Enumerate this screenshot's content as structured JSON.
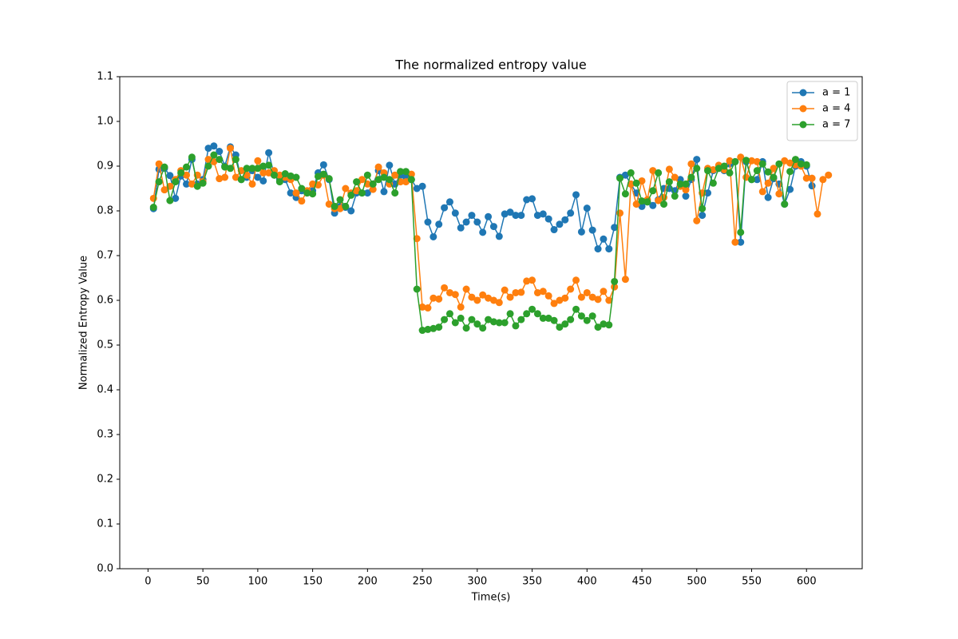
{
  "chart_data": {
    "type": "line",
    "title": "The normalized entropy value",
    "x_label": "Time(s)",
    "y_label": "Normalized Entropy Value",
    "x": [
      5,
      10,
      15,
      20,
      25,
      30,
      35,
      40,
      45,
      50,
      55,
      60,
      65,
      70,
      75,
      80,
      85,
      90,
      95,
      100,
      105,
      110,
      115,
      120,
      125,
      130,
      135,
      140,
      145,
      150,
      155,
      160,
      165,
      170,
      175,
      180,
      185,
      190,
      195,
      200,
      205,
      210,
      215,
      220,
      225,
      230,
      235,
      240,
      245,
      250,
      255,
      260,
      265,
      270,
      275,
      280,
      285,
      290,
      295,
      300,
      305,
      310,
      315,
      320,
      325,
      330,
      335,
      340,
      345,
      350,
      355,
      360,
      365,
      370,
      375,
      380,
      385,
      390,
      395,
      400,
      405,
      410,
      415,
      420,
      425,
      430,
      435,
      440,
      445,
      450,
      455,
      460,
      465,
      470,
      475,
      480,
      485,
      490,
      495,
      500,
      505,
      510,
      515,
      520,
      525,
      530,
      535,
      540,
      545,
      550,
      555,
      560,
      565,
      570,
      575,
      580,
      585,
      590,
      595,
      600,
      605,
      610,
      615,
      620
    ],
    "series": [
      {
        "name": "a = 1",
        "color": "#1f77b4",
        "values": [
          0.805,
          0.893,
          0.895,
          0.879,
          0.828,
          0.878,
          0.86,
          0.915,
          0.86,
          0.87,
          0.94,
          0.945,
          0.933,
          0.9,
          0.943,
          0.925,
          0.87,
          0.875,
          0.89,
          0.875,
          0.867,
          0.93,
          0.88,
          0.87,
          0.87,
          0.84,
          0.83,
          0.845,
          0.84,
          0.845,
          0.885,
          0.903,
          0.87,
          0.795,
          0.81,
          0.808,
          0.8,
          0.84,
          0.84,
          0.84,
          0.86,
          0.89,
          0.843,
          0.902,
          0.86,
          0.88,
          0.875,
          0.87,
          0.85,
          0.855,
          0.775,
          0.742,
          0.77,
          0.807,
          0.82,
          0.795,
          0.762,
          0.775,
          0.79,
          0.775,
          0.752,
          0.787,
          0.765,
          0.743,
          0.793,
          0.797,
          0.79,
          0.79,
          0.825,
          0.827,
          0.79,
          0.793,
          0.782,
          0.758,
          0.77,
          0.78,
          0.795,
          0.836,
          0.753,
          0.806,
          0.757,
          0.715,
          0.737,
          0.715,
          0.763,
          0.875,
          0.88,
          0.86,
          0.84,
          0.81,
          0.82,
          0.812,
          0.825,
          0.85,
          0.85,
          0.845,
          0.87,
          0.833,
          0.87,
          0.915,
          0.79,
          0.84,
          0.89,
          0.895,
          0.89,
          0.905,
          0.91,
          0.73,
          0.91,
          0.87,
          0.87,
          0.91,
          0.83,
          0.872,
          0.86,
          0.815,
          0.848,
          0.9,
          0.91,
          0.9,
          0.856,
          null,
          null,
          null
        ]
      },
      {
        "name": "a = 4",
        "color": "#ff7f0e",
        "values": [
          0.828,
          0.905,
          0.847,
          0.855,
          0.87,
          0.89,
          0.88,
          0.86,
          0.88,
          0.865,
          0.915,
          0.91,
          0.872,
          0.875,
          0.94,
          0.875,
          0.89,
          0.88,
          0.86,
          0.912,
          0.885,
          0.885,
          0.89,
          0.88,
          0.875,
          0.87,
          0.84,
          0.822,
          0.845,
          0.86,
          0.858,
          0.88,
          0.815,
          0.805,
          0.805,
          0.85,
          0.84,
          0.845,
          0.87,
          0.86,
          0.848,
          0.898,
          0.885,
          0.86,
          0.88,
          0.865,
          0.865,
          0.882,
          0.738,
          0.585,
          0.583,
          0.605,
          0.603,
          0.628,
          0.617,
          0.613,
          0.585,
          0.625,
          0.607,
          0.6,
          0.612,
          0.605,
          0.6,
          0.595,
          0.623,
          0.607,
          0.617,
          0.618,
          0.643,
          0.645,
          0.617,
          0.62,
          0.61,
          0.593,
          0.6,
          0.605,
          0.625,
          0.645,
          0.607,
          0.617,
          0.607,
          0.602,
          0.62,
          0.6,
          0.63,
          0.795,
          0.647,
          0.86,
          0.815,
          0.867,
          0.825,
          0.89,
          0.823,
          0.83,
          0.893,
          0.875,
          0.855,
          0.847,
          0.905,
          0.778,
          0.84,
          0.895,
          0.892,
          0.902,
          0.892,
          0.912,
          0.73,
          0.92,
          0.875,
          0.912,
          0.91,
          0.843,
          0.862,
          0.895,
          0.838,
          0.912,
          0.907,
          0.903,
          0.9,
          0.873,
          0.873,
          0.793,
          0.87,
          0.88
        ]
      },
      {
        "name": "a = 7",
        "color": "#2ca02c",
        "values": [
          0.808,
          0.865,
          0.898,
          0.823,
          0.865,
          0.885,
          0.898,
          0.92,
          0.855,
          0.862,
          0.9,
          0.925,
          0.915,
          0.898,
          0.895,
          0.915,
          0.87,
          0.895,
          0.895,
          0.895,
          0.9,
          0.902,
          0.88,
          0.865,
          0.883,
          0.878,
          0.875,
          0.85,
          0.84,
          0.838,
          0.877,
          0.882,
          0.872,
          0.81,
          0.825,
          0.81,
          0.835,
          0.865,
          0.84,
          0.88,
          0.86,
          0.87,
          0.875,
          0.87,
          0.84,
          0.888,
          0.888,
          0.87,
          0.625,
          0.533,
          0.535,
          0.537,
          0.54,
          0.557,
          0.57,
          0.55,
          0.56,
          0.538,
          0.557,
          0.547,
          0.538,
          0.557,
          0.552,
          0.55,
          0.55,
          0.57,
          0.543,
          0.557,
          0.57,
          0.58,
          0.57,
          0.56,
          0.56,
          0.555,
          0.54,
          0.547,
          0.557,
          0.58,
          0.565,
          0.555,
          0.565,
          0.54,
          0.547,
          0.545,
          0.642,
          0.873,
          0.838,
          0.885,
          0.862,
          0.822,
          0.82,
          0.845,
          0.885,
          0.815,
          0.865,
          0.833,
          0.86,
          0.86,
          0.875,
          0.895,
          0.805,
          0.89,
          0.862,
          0.895,
          0.9,
          0.885,
          0.91,
          0.752,
          0.913,
          0.87,
          0.89,
          0.905,
          0.887,
          0.875,
          0.905,
          0.815,
          0.888,
          0.915,
          0.905,
          0.903,
          null,
          null,
          null,
          null
        ]
      }
    ],
    "xlim": [
      -25.75,
      650.75
    ],
    "xticks": [
      0,
      50,
      100,
      150,
      200,
      250,
      300,
      350,
      400,
      450,
      500,
      550,
      600
    ],
    "ylim": [
      0,
      1.1
    ],
    "yticks": [
      {
        "value": 0,
        "label": "0.0"
      },
      0.1,
      0.2,
      0.3,
      0.4,
      0.5,
      0.6,
      0.7,
      0.8,
      0.9,
      {
        "value": 1,
        "label": "1.0"
      },
      1.1
    ],
    "grid": false,
    "legend": "upper right"
  }
}
